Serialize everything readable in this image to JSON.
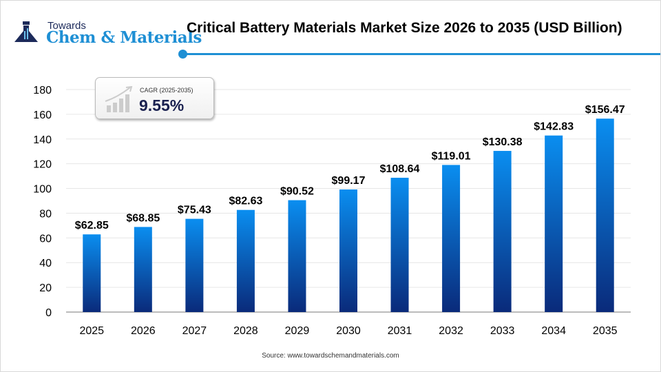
{
  "logo": {
    "line1": "Towards",
    "line2": "Chem & Materials"
  },
  "header": {
    "title": "Critical Battery Materials Market Size 2026 to 2035 (USD Billion)"
  },
  "cagr": {
    "label": "CAGR (2025-2035)",
    "value": "9.55%"
  },
  "source": "Source: www.towardschemandmaterials.com",
  "colors": {
    "bar_top": "#0a8ef0",
    "bar_bottom": "#0a2a7a",
    "accent": "#1e8fd4"
  },
  "chart_data": {
    "type": "bar",
    "title": "Critical Battery Materials Market Size 2026 to 2035 (USD Billion)",
    "categories": [
      "2025",
      "2026",
      "2027",
      "2028",
      "2029",
      "2030",
      "2031",
      "2032",
      "2033",
      "2034",
      "2035"
    ],
    "values": [
      62.85,
      68.85,
      75.43,
      82.63,
      90.52,
      99.17,
      108.64,
      119.01,
      130.38,
      142.83,
      156.47
    ],
    "data_labels": [
      "$62.85",
      "$68.85",
      "$75.43",
      "$82.63",
      "$90.52",
      "$99.17",
      "$108.64",
      "$119.01",
      "$130.38",
      "$142.83",
      "$156.47"
    ],
    "ylim": [
      0,
      180
    ],
    "yticks": [
      0,
      20,
      40,
      60,
      80,
      100,
      120,
      140,
      160,
      180
    ],
    "grid": true,
    "xlabel": "",
    "ylabel": ""
  }
}
